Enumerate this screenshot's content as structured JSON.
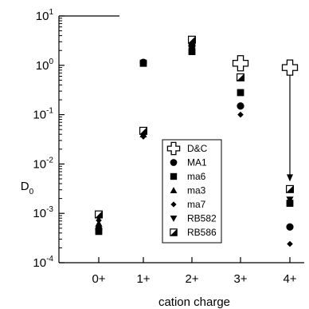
{
  "chart_data": {
    "type": "scatter",
    "title": "",
    "xlabel": "cation charge",
    "ylabel": "D",
    "ylabel_subscript": "0",
    "y_scale": "log",
    "ylim": [
      0.0001,
      10
    ],
    "categories": [
      "0+",
      "1+",
      "2+",
      "3+",
      "4+"
    ],
    "y_ticks": [
      {
        "base": "10",
        "exp": "-4"
      },
      {
        "base": "10",
        "exp": "-3"
      },
      {
        "base": "10",
        "exp": "-2"
      },
      {
        "base": "10",
        "exp": "-1"
      },
      {
        "base": "10",
        "exp": "0"
      },
      {
        "base": "10",
        "exp": "1"
      }
    ],
    "grid": false,
    "legend_position": "center-right",
    "series": [
      {
        "name": "D&C",
        "marker": "cross",
        "points": [
          {
            "x": "3+",
            "y": 1.1
          },
          {
            "x": "4+",
            "y": 0.9
          }
        ]
      },
      {
        "name": "MA1",
        "marker": "circle",
        "points": [
          {
            "x": "0+",
            "y": 0.00048
          },
          {
            "x": "1+",
            "y": 1.15
          },
          {
            "x": "2+",
            "y": 2.5
          },
          {
            "x": "3+",
            "y": 0.15
          },
          {
            "x": "4+",
            "y": 0.00053
          }
        ]
      },
      {
        "name": "ma6",
        "marker": "square",
        "points": [
          {
            "x": "0+",
            "y": 0.00043
          },
          {
            "x": "1+",
            "y": 1.1
          },
          {
            "x": "2+",
            "y": 1.9
          },
          {
            "x": "3+",
            "y": 0.28
          },
          {
            "x": "4+",
            "y": 0.0016
          }
        ]
      },
      {
        "name": "ma3",
        "marker": "triangle-up",
        "points": [
          {
            "x": "0+",
            "y": 0.00062
          },
          {
            "x": "1+",
            "y": 0.04
          },
          {
            "x": "2+",
            "y": 2.8
          },
          {
            "x": "4+",
            "y": 0.0018
          }
        ]
      },
      {
        "name": "ma7",
        "marker": "diamond",
        "points": [
          {
            "x": "0+",
            "y": 0.00072
          },
          {
            "x": "1+",
            "y": 0.036
          },
          {
            "x": "2+",
            "y": 2.6
          },
          {
            "x": "3+",
            "y": 0.1
          },
          {
            "x": "4+",
            "y": 0.00024
          }
        ]
      },
      {
        "name": "RB582",
        "marker": "triangle-down",
        "points": [
          {
            "x": "0+",
            "y": 0.00082
          },
          {
            "x": "1+",
            "y": 0.042
          },
          {
            "x": "2+",
            "y": 3.0
          },
          {
            "x": "4+",
            "y": 0.0019
          }
        ]
      },
      {
        "name": "RB586",
        "marker": "half-square",
        "points": [
          {
            "x": "0+",
            "y": 0.00095
          },
          {
            "x": "1+",
            "y": 0.047
          },
          {
            "x": "2+",
            "y": 3.3
          },
          {
            "x": "3+",
            "y": 0.57
          },
          {
            "x": "4+",
            "y": 0.0031
          }
        ]
      }
    ],
    "annotations": [
      {
        "type": "arrow",
        "x": "4+",
        "from": 0.62,
        "to": 0.0044
      }
    ]
  }
}
